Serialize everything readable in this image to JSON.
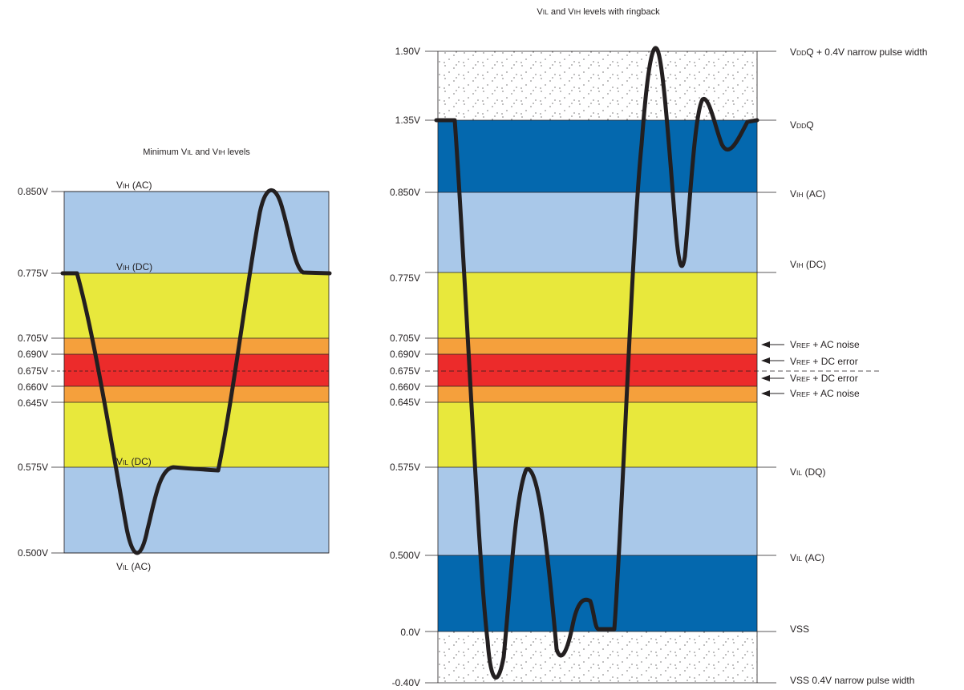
{
  "left": {
    "title": {
      "pre": "Minimum V",
      "s1": "IL",
      "mid": " and V",
      "s2": "IH",
      "post": " levels"
    },
    "ticks": {
      "t850": "0.850V",
      "t775": "0.775V",
      "t705": "0.705V",
      "t690": "0.690V",
      "t675": "0.675V",
      "t660": "0.660V",
      "t645": "0.645V",
      "t575": "0.575V",
      "t500": "0.500V"
    },
    "labels": {
      "vih_ac": {
        "main": "V",
        "sub": "IH",
        "rest": " (AC)"
      },
      "vih_dc": {
        "main": "V",
        "sub": "IH",
        "rest": " (DC)"
      },
      "vil_dc": {
        "main": "V",
        "sub": "IL",
        "rest": " (DC)"
      },
      "vil_ac": {
        "main": "V",
        "sub": "IL",
        "rest": " (AC)"
      }
    }
  },
  "right": {
    "title": {
      "pre": "V",
      "s1": "IL",
      "mid": " and V",
      "s2": "IH",
      "post": " levels with ringback"
    },
    "ticks": {
      "t190": "1.90V",
      "t135": "1.35V",
      "t850": "0.850V",
      "t775": "0.775V",
      "t705": "0.705V",
      "t690": "0.690V",
      "t675": "0.675V",
      "t660": "0.660V",
      "t645": "0.645V",
      "t575": "0.575V",
      "t500": "0.500V",
      "t000": "0.0V",
      "tn40": "-0.40V"
    },
    "labels": {
      "vddq_pulse": {
        "main": "V",
        "sub": "DD",
        "rest": "Q + 0.4V narrow pulse width"
      },
      "vddq": {
        "main": "V",
        "sub": "DD",
        "rest": "Q"
      },
      "vih_ac": {
        "main": "V",
        "sub": "IH",
        "rest": " (AC)"
      },
      "vih_dc": {
        "main": "V",
        "sub": "IH",
        "rest": " (DC)"
      },
      "vref_ac_noise_top": {
        "main": "V",
        "sub": "REF",
        "rest": " + AC noise"
      },
      "vref_dc_error_top": {
        "main": "V",
        "sub": "REF",
        "rest": " + DC error"
      },
      "vref_dc_error_bot": {
        "main": "V",
        "sub": "REF",
        "rest": " + DC error"
      },
      "vref_ac_noise_bot": {
        "main": "V",
        "sub": "REF",
        "rest": " + AC noise"
      },
      "vil_dq": {
        "main": "V",
        "sub": "IL",
        "rest": " (DQ)"
      },
      "vil_ac": {
        "main": "V",
        "sub": "IL",
        "rest": " (AC)"
      },
      "vss": "VSS",
      "vss_pulse": "VSS 0.4V narrow pulse width"
    }
  },
  "colors": {
    "dark_blue": "#0468ae",
    "light_blue": "#a9c8e9",
    "yellow": "#e8e83c",
    "orange": "#f5a03c",
    "red": "#ec2b2b",
    "signal": "#231f20"
  }
}
